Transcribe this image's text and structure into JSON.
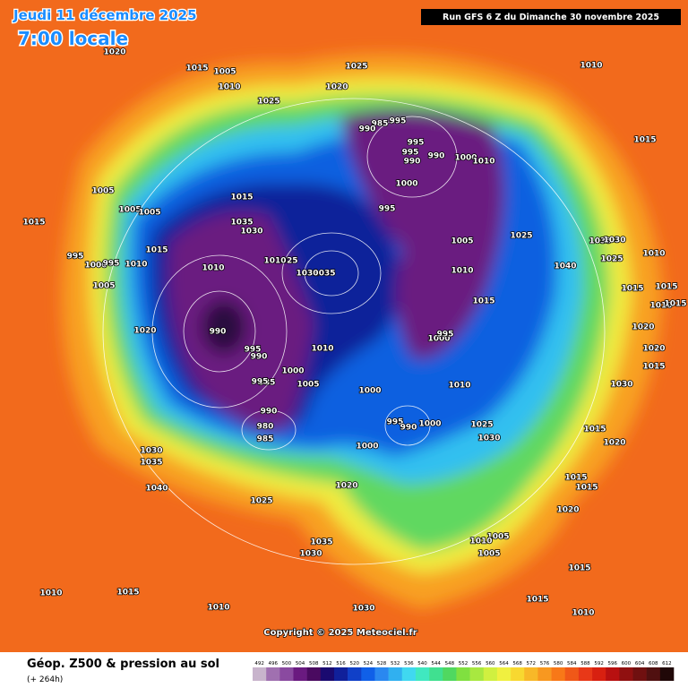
{
  "header": {
    "date": "Jeudi 11 décembre 2025",
    "time": "7:00 locale",
    "run": "Run GFS 6 Z du Dimanche 30 novembre 2025"
  },
  "map": {
    "isobar_labels": [
      "1020",
      "1015",
      "1005",
      "1010",
      "1025",
      "1020",
      "1010",
      "1025",
      "985",
      "995",
      "990",
      "995",
      "995",
      "990",
      "990",
      "1000",
      "1010",
      "1015",
      "1000",
      "995",
      "1005",
      "1015",
      "1005",
      "1005",
      "1015",
      "1035",
      "1030",
      "1025",
      "1005",
      "1035",
      "1030",
      "995",
      "1015",
      "1025",
      "1010",
      "1000",
      "995",
      "1010",
      "1025",
      "1010",
      "1010",
      "1040",
      "1035",
      "1030",
      "1010",
      "1005",
      "1015",
      "1015",
      "1015",
      "1010",
      "1015",
      "990",
      "1020",
      "1020",
      "1000",
      "995",
      "995",
      "990",
      "1010",
      "1020",
      "985",
      "995",
      "1000",
      "1015",
      "1005",
      "1010",
      "1000",
      "1030",
      "990",
      "995",
      "990",
      "1000",
      "1025",
      "980",
      "985",
      "1015",
      "1030",
      "1020",
      "1000",
      "1030",
      "1035",
      "1015",
      "1015",
      "1040",
      "1020",
      "1025",
      "1020",
      "1005",
      "1010",
      "1035",
      "1030",
      "1005",
      "1015",
      "1010",
      "1015",
      "1010",
      "1030",
      "1015",
      "1010"
    ],
    "copyright": "Copyright © 2025 Meteociel.fr"
  },
  "footer": {
    "title": "Géop. Z500 & pression au sol",
    "lead": "(+ 264h)"
  },
  "scale": {
    "ticks": [
      492,
      496,
      500,
      504,
      508,
      512,
      516,
      520,
      524,
      528,
      532,
      536,
      540,
      544,
      548,
      552,
      556,
      560,
      564,
      568,
      572,
      576,
      580,
      584,
      588,
      592,
      596,
      600,
      604,
      608,
      612
    ],
    "colors": [
      "#c8b4cc",
      "#a070b0",
      "#8a4aa0",
      "#6a1a80",
      "#4a0a60",
      "#1a0a70",
      "#10209a",
      "#1040c8",
      "#1060e8",
      "#2a88f0",
      "#30b0f0",
      "#40d8f0",
      "#40e8c0",
      "#40e090",
      "#50d860",
      "#80e040",
      "#a8e840",
      "#d0f040",
      "#f0f040",
      "#f8d830",
      "#f8b828",
      "#f89820",
      "#f87818",
      "#f05818",
      "#e83818",
      "#d82010",
      "#b81010",
      "#901010",
      "#701010",
      "#501010",
      "#200808"
    ]
  }
}
